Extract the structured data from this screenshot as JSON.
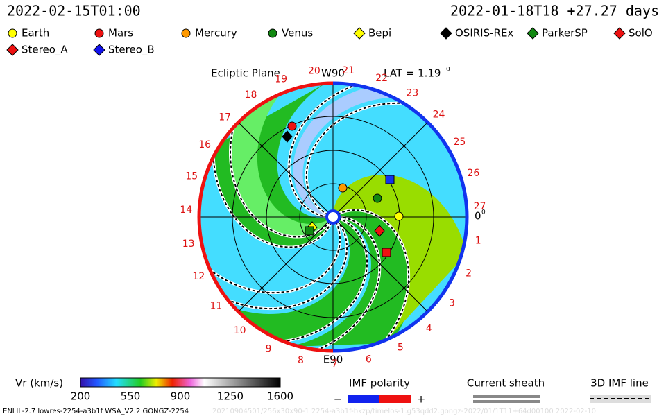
{
  "header": {
    "left_time": "2022-02-15T01:00",
    "right_time": "2022-01-18T18 +27.27 days"
  },
  "legend": [
    {
      "label": "Earth",
      "color": "#ffff00",
      "shape": "circle"
    },
    {
      "label": "Mars",
      "color": "#ee1111",
      "shape": "circle"
    },
    {
      "label": "Mercury",
      "color": "#ff9900",
      "shape": "circle"
    },
    {
      "label": "Venus",
      "color": "#118811",
      "shape": "circle"
    },
    {
      "label": "Bepi",
      "color": "#ffff00",
      "shape": "diamond"
    },
    {
      "label": "OSIRIS-REx",
      "color": "#000000",
      "shape": "diamond"
    },
    {
      "label": "ParkerSP",
      "color": "#118811",
      "shape": "diamond"
    },
    {
      "label": "SolO",
      "color": "#ee1111",
      "shape": "diamond"
    },
    {
      "label": "Stereo_A",
      "color": "#ee1111",
      "shape": "diamond"
    },
    {
      "label": "Stereo_B",
      "color": "#1111ee",
      "shape": "diamond"
    }
  ],
  "plot": {
    "title": "Ecliptic Plane",
    "top_label": "W90",
    "bottom_label": "E90",
    "lat": "LAT = 1.19",
    "lat_unit": "0",
    "zero_label": "0",
    "zero_unit": "0",
    "rim_numbers": [
      "1",
      "2",
      "3",
      "4",
      "5",
      "6",
      "7",
      "8",
      "9",
      "10",
      "11",
      "12",
      "13",
      "14",
      "15",
      "16",
      "17",
      "18",
      "19",
      "20",
      "21",
      "22",
      "23",
      "24",
      "25",
      "26",
      "27"
    ]
  },
  "colorbar": {
    "label": "Vr (km/s)",
    "ticks": [
      "200",
      "550",
      "900",
      "1250",
      "1600"
    ]
  },
  "imf": {
    "title": "IMF polarity",
    "minus": "−",
    "plus": "+"
  },
  "sheath": {
    "title": "Current sheath"
  },
  "line3d": {
    "title": "3D IMF line"
  },
  "footer": {
    "model": "ENLIL-2.7 lowres-2254-a3b1f WSA_V2.2 GONGZ-2254",
    "run": "20210904501/256x30x90-1 2254-a3b1f-bkzp/timelos-1.g53qdd2.gongz-2022/01/1T11+64d00100   2022-02-10"
  }
}
